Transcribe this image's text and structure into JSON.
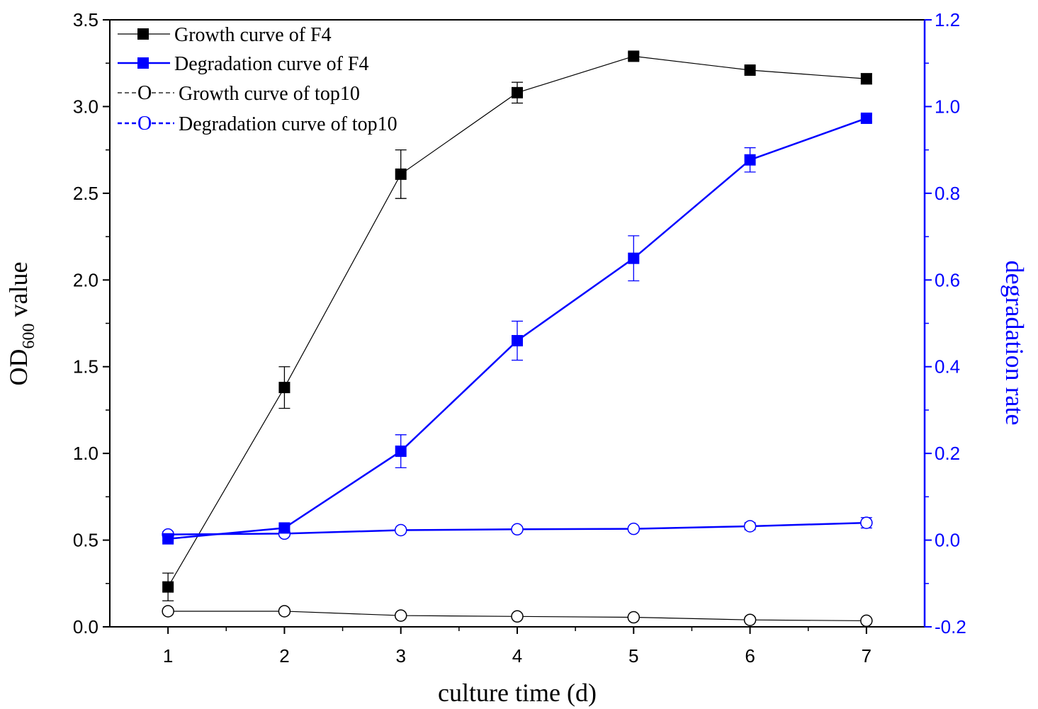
{
  "chart_data": {
    "type": "line",
    "x": [
      1,
      2,
      3,
      4,
      5,
      6,
      7
    ],
    "xlabel": "culture time (d)",
    "xlim": [
      0.5,
      7.5
    ],
    "xticks": [
      1,
      2,
      3,
      4,
      5,
      6,
      7
    ],
    "ylabel_main": "OD",
    "ylabel_sub": "600",
    "ylabel_tail": " value",
    "ylim": [
      0,
      3.5
    ],
    "yticks": [
      "0.0",
      "0.5",
      "1.0",
      "1.5",
      "2.0",
      "2.5",
      "3.0",
      "3.5"
    ],
    "y2label": "degradation rate",
    "y2lim": [
      -0.2,
      1.2
    ],
    "y2ticks": [
      "-0.2",
      "0.0",
      "0.2",
      "0.4",
      "0.6",
      "0.8",
      "1.0",
      "1.2"
    ],
    "grid": false,
    "legend_position": "top-left",
    "series": [
      {
        "name": "Growth curve of F4",
        "legend_prefix": "",
        "axis": "left",
        "color": "#000000",
        "marker": "filled-square",
        "line_width": 1.2,
        "values": [
          0.23,
          1.38,
          2.61,
          3.08,
          3.29,
          3.21,
          3.16
        ],
        "errors": [
          0.08,
          0.12,
          0.14,
          0.06,
          0.02,
          0.02,
          0.03
        ]
      },
      {
        "name": "Degradation curve of F4",
        "legend_prefix": "",
        "axis": "right",
        "color": "#0000ff",
        "marker": "filled-square",
        "line_width": 2.5,
        "values": [
          0.003,
          0.028,
          0.205,
          0.46,
          0.65,
          0.877,
          0.973
        ],
        "errors": [
          0.004,
          0.005,
          0.038,
          0.045,
          0.052,
          0.028,
          0.008
        ]
      },
      {
        "name": "Growth curve of top10",
        "legend_prefix": "O",
        "axis": "left",
        "color": "#000000",
        "marker": "open-circle",
        "line_width": 1.2,
        "values": [
          0.09,
          0.09,
          0.065,
          0.06,
          0.055,
          0.04,
          0.035
        ],
        "errors": [
          0.005,
          0.005,
          0.005,
          0.005,
          0.005,
          0.005,
          0.005
        ]
      },
      {
        "name": "Degradation curve of top10",
        "legend_prefix": "O",
        "axis": "right",
        "color": "#0000ff",
        "marker": "open-circle",
        "line_width": 2.5,
        "values": [
          0.013,
          0.015,
          0.023,
          0.025,
          0.026,
          0.032,
          0.04
        ],
        "errors": [
          0.006,
          0.006,
          0.004,
          0.005,
          0.005,
          0.008,
          0.012
        ]
      }
    ]
  }
}
